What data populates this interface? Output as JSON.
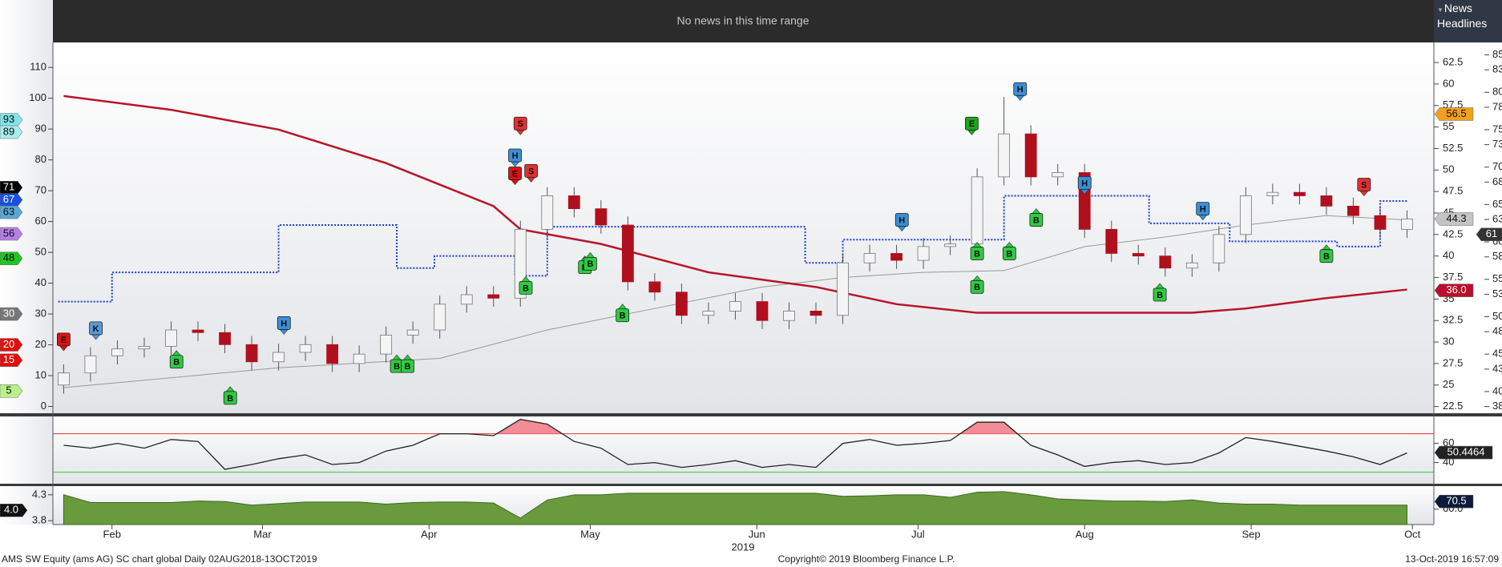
{
  "header": {
    "message": "No news in this time range"
  },
  "news_panel": {
    "title": "News Headlines"
  },
  "footer": {
    "left": "AMS SW Equity (ams AG) SC chart global  Daily 02AUG2018-13OCT2019",
    "center": "Copyright© 2019 Bloomberg Finance L.P.",
    "right": "13-Oct-2019 16:57:09"
  },
  "chart_data": [
    {
      "type": "candlestick",
      "xlim": [
        21,
        278
      ],
      "x": [
        23,
        28,
        33,
        38,
        43,
        48,
        53,
        58,
        63,
        68,
        73,
        78,
        83,
        88,
        93,
        98,
        103,
        108,
        113,
        118,
        123,
        128,
        133,
        138,
        143,
        148,
        153,
        158,
        163,
        168,
        173,
        178,
        183,
        188,
        193,
        198,
        203,
        208,
        213,
        218,
        223,
        228,
        233,
        238,
        243,
        248,
        253,
        258,
        263,
        268,
        273
      ],
      "open": [
        25,
        26.4,
        28.4,
        29.2,
        29.5,
        31.4,
        31.1,
        29.7,
        27.7,
        28.8,
        29.7,
        27.5,
        28.6,
        30.8,
        31.4,
        34.4,
        35.5,
        35.1,
        43.1,
        47,
        45.5,
        43.6,
        37,
        35.8,
        33.1,
        33.6,
        34.7,
        32.5,
        33.6,
        33.1,
        39.2,
        40.3,
        39.5,
        41.1,
        41.4,
        49.2,
        54.2,
        49.2,
        49.7,
        43.1,
        40.3,
        40,
        38.6,
        39.2,
        42.5,
        47,
        47.4,
        47,
        45.8,
        44.7,
        43.1
      ],
      "high": [
        27.4,
        29.4,
        30.2,
        30.5,
        32.4,
        32.4,
        32.1,
        30.7,
        29.8,
        30.7,
        30.7,
        29.6,
        31.8,
        32.4,
        35.4,
        36.5,
        36.5,
        44.1,
        48,
        48,
        46.5,
        44.6,
        38,
        36.8,
        34.6,
        35.7,
        35.7,
        34.6,
        34.6,
        40.2,
        41.3,
        41.3,
        42.1,
        42.4,
        50.2,
        58.5,
        55.2,
        50.7,
        50.7,
        44.1,
        41.3,
        41,
        40.2,
        43.5,
        48,
        48.4,
        48.4,
        48,
        46.8,
        45.7,
        45.3
      ],
      "low": [
        24,
        25.4,
        27.4,
        28.2,
        28.5,
        30.1,
        28.7,
        26.7,
        26.7,
        27.8,
        26.5,
        26.5,
        27.6,
        29.8,
        30.4,
        33.4,
        34.1,
        34.1,
        42.1,
        44.5,
        42.6,
        36,
        34.8,
        32.1,
        32.1,
        32.6,
        31.5,
        31.5,
        32.1,
        32.1,
        38.2,
        38.5,
        38.5,
        40.1,
        40.4,
        48.2,
        48.2,
        48.2,
        42.1,
        39.3,
        39,
        37.6,
        37.6,
        38.2,
        41.5,
        46,
        46,
        44.8,
        43.7,
        42.1,
        42.1
      ],
      "close": [
        26.4,
        28.4,
        29.2,
        29.5,
        31.4,
        31.1,
        29.7,
        27.7,
        28.8,
        29.7,
        27.5,
        28.6,
        30.8,
        31.4,
        34.4,
        35.5,
        35.1,
        43.1,
        47,
        45.5,
        43.6,
        37,
        35.8,
        33.1,
        33.6,
        34.7,
        32.5,
        33.6,
        33.1,
        39.2,
        40.3,
        39.5,
        41.1,
        41.4,
        49.2,
        54.2,
        49.2,
        49.7,
        43.1,
        40.3,
        40,
        38.6,
        39.2,
        42.5,
        47,
        47.4,
        47,
        45.8,
        44.7,
        43.1,
        44.3
      ],
      "up_color": "#f4f4f4",
      "down_color": "#b0101e",
      "candle_axis": "y2",
      "ylim": [
        -2.2,
        118.1
      ],
      "yticks": [
        0,
        10,
        20,
        30,
        40,
        50,
        60,
        70,
        80,
        90,
        100,
        110
      ],
      "y2lim": [
        21.72,
        64.83
      ],
      "y2ticks": [
        22.5,
        25,
        27.5,
        30,
        32.5,
        35,
        37.5,
        40,
        42.5,
        45,
        47.5,
        50,
        52.5,
        55,
        57.5,
        60,
        62.5
      ],
      "y3lim": [
        37.1,
        86.66
      ],
      "y3ticks": [
        38,
        40,
        43,
        45,
        48,
        50,
        53,
        55,
        58,
        60,
        63,
        65,
        68,
        70,
        73,
        75,
        78,
        80,
        83,
        85
      ],
      "overlays": [
        {
          "color": "#999999",
          "width": 1,
          "dash": "none",
          "axis": "y2",
          "x": [
            23,
            63,
            93,
            113,
            133,
            153,
            168,
            183,
            198,
            213,
            228,
            243,
            258,
            273
          ],
          "values": [
            24.7,
            27,
            28.1,
            31.4,
            33.9,
            36.4,
            37.5,
            38.1,
            38.3,
            41.1,
            42.2,
            43.6,
            44.7,
            44.2
          ]
        },
        {
          "color": "#b81428",
          "width": 2.5,
          "dash": "none",
          "axis": "y2",
          "x": [
            23,
            43,
            63,
            83,
            103,
            108,
            123,
            143,
            163,
            178,
            193,
            213,
            233,
            243,
            258,
            273
          ],
          "values": [
            58.6,
            57,
            54.7,
            50.8,
            45.8,
            43.1,
            41.4,
            38.1,
            36.4,
            34.4,
            33.4,
            33.4,
            33.4,
            33.9,
            35.1,
            36.1
          ]
        },
        {
          "color": "#1a3fd8",
          "width": 2,
          "dash": "2 2",
          "axis": "y2",
          "x": [
            22,
            32,
            32,
            63,
            63,
            85,
            85,
            92,
            92,
            107,
            107,
            113,
            113,
            161,
            161,
            168,
            168,
            198,
            198,
            225,
            225,
            240,
            240,
            260,
            260,
            268,
            268,
            273
          ],
          "values": [
            34.7,
            34.7,
            38.1,
            38.1,
            43.6,
            43.6,
            38.6,
            38.6,
            40,
            40,
            37.7,
            37.7,
            43.4,
            43.4,
            39.2,
            39.2,
            41.9,
            41.9,
            47,
            47,
            43.8,
            43.8,
            41.7,
            41.7,
            41.1,
            41.1,
            46.4,
            46.4
          ]
        }
      ],
      "badges": [
        {
          "value": 93,
          "color": "#7fe3e8",
          "axis": "y"
        },
        {
          "value": 89,
          "color": "#a8ecec",
          "axis": "y"
        },
        {
          "value": 71,
          "color": "#000000",
          "axis": "y"
        },
        {
          "value": 67,
          "color": "#1a4fe0",
          "axis": "y"
        },
        {
          "value": 63,
          "color": "#5aa7d6",
          "axis": "y"
        },
        {
          "value": 56,
          "color": "#b57fe6",
          "axis": "y"
        },
        {
          "value": 48,
          "color": "#22c322",
          "axis": "y"
        },
        {
          "value": 30,
          "color": "#777777",
          "axis": "y"
        },
        {
          "value": 20,
          "color": "#e01010",
          "axis": "y"
        },
        {
          "value": 15,
          "color": "#e01010",
          "axis": "y"
        },
        {
          "value": 5,
          "color": "#b8f08a",
          "axis": "y"
        },
        {
          "value": 56.5,
          "color": "#f0a020",
          "axis": "y2"
        },
        {
          "value": 44.3,
          "color": "#c4c4c4",
          "axis": "y2"
        },
        {
          "value": 36,
          "label": "36.0",
          "color": "#b8102a",
          "axis": "y2"
        },
        {
          "value": 61,
          "color": "#333333",
          "axis": "y3"
        }
      ],
      "events": [
        {
          "label": "E",
          "x": 23,
          "y": 30.3,
          "color": "#e01010"
        },
        {
          "label": "K",
          "x": 29,
          "y": 31.6,
          "color": "#5a9ad8"
        },
        {
          "label": "B",
          "x": 44,
          "y": 27.7,
          "color": "#2ecc40"
        },
        {
          "label": "B",
          "x": 54,
          "y": 23.5,
          "color": "#2ecc40"
        },
        {
          "label": "H",
          "x": 64,
          "y": 32.2,
          "color": "#3a8fd8"
        },
        {
          "label": "B",
          "x": 85,
          "y": 27.2,
          "color": "#2ecc40"
        },
        {
          "label": "B",
          "x": 87,
          "y": 27.2,
          "color": "#2ecc40"
        },
        {
          "label": "H",
          "x": 107,
          "y": 51.7,
          "color": "#3a8fd8"
        },
        {
          "label": "E",
          "x": 107,
          "y": 49.6,
          "color": "#e01010"
        },
        {
          "label": "S",
          "x": 108,
          "y": 55.4,
          "color": "#e03030"
        },
        {
          "label": "S",
          "x": 110,
          "y": 49.9,
          "color": "#e03030"
        },
        {
          "label": "B",
          "x": 109,
          "y": 36.3,
          "color": "#2ecc40"
        },
        {
          "label": "B",
          "x": 120,
          "y": 38.7,
          "color": "#2ecc40"
        },
        {
          "label": "B",
          "x": 121,
          "y": 39.1,
          "color": "#2ecc40"
        },
        {
          "label": "B",
          "x": 127,
          "y": 33.1,
          "color": "#2ecc40"
        },
        {
          "label": "H",
          "x": 179,
          "y": 44.2,
          "color": "#3a8fd8"
        },
        {
          "label": "B",
          "x": 193,
          "y": 40.3,
          "color": "#2ecc40"
        },
        {
          "label": "B",
          "x": 193,
          "y": 36.4,
          "color": "#2ecc40"
        },
        {
          "label": "E",
          "x": 192,
          "y": 55.4,
          "color": "#18a818"
        },
        {
          "label": "B",
          "x": 199,
          "y": 40.3,
          "color": "#2ecc40"
        },
        {
          "label": "H",
          "x": 201,
          "y": 59.4,
          "color": "#3a8fd8"
        },
        {
          "label": "B",
          "x": 204,
          "y": 44.2,
          "color": "#2ecc40"
        },
        {
          "label": "H",
          "x": 213,
          "y": 48.5,
          "color": "#3a8fd8"
        },
        {
          "label": "B",
          "x": 227,
          "y": 35.5,
          "color": "#2ecc40"
        },
        {
          "label": "H",
          "x": 235,
          "y": 45.5,
          "color": "#3a8fd8"
        },
        {
          "label": "B",
          "x": 258,
          "y": 40,
          "color": "#2ecc40"
        },
        {
          "label": "S",
          "x": 265,
          "y": 48.3,
          "color": "#e03030"
        }
      ]
    },
    {
      "type": "line",
      "xlim": [
        21,
        278
      ],
      "x": [
        23,
        28,
        33,
        38,
        43,
        48,
        53,
        58,
        63,
        68,
        73,
        78,
        83,
        88,
        93,
        98,
        103,
        108,
        113,
        118,
        123,
        128,
        133,
        138,
        143,
        148,
        153,
        158,
        163,
        168,
        173,
        178,
        183,
        188,
        193,
        198,
        203,
        208,
        213,
        218,
        223,
        228,
        233,
        238,
        243,
        248,
        253,
        258,
        263,
        268,
        273
      ],
      "values": [
        58,
        55,
        60,
        55,
        64,
        62,
        33,
        38,
        44,
        48,
        38,
        40,
        52,
        58,
        70,
        70,
        68,
        85,
        80,
        62,
        55,
        38,
        40,
        35,
        38,
        42,
        35,
        38,
        35,
        60,
        64,
        58,
        60,
        63,
        82,
        82,
        58,
        48,
        36,
        40,
        42,
        38,
        40,
        50,
        66,
        62,
        57,
        52,
        46,
        38,
        50
      ],
      "color": "#222222",
      "ylim": [
        18,
        88
      ],
      "y2ticks": [
        40,
        60
      ],
      "hlines": [
        {
          "value": 70,
          "color": "#e03030",
          "fill": "#f28c96"
        },
        {
          "value": 30,
          "color": "#2ecc40"
        }
      ],
      "badges": [
        {
          "value": 50.4464,
          "color": "#222222",
          "axis": "y2"
        }
      ]
    },
    {
      "type": "area",
      "xlim": [
        21,
        278
      ],
      "x": [
        23,
        28,
        33,
        38,
        43,
        48,
        53,
        58,
        63,
        68,
        73,
        78,
        83,
        88,
        93,
        98,
        103,
        108,
        113,
        118,
        123,
        128,
        133,
        138,
        143,
        148,
        153,
        158,
        163,
        168,
        173,
        178,
        183,
        188,
        193,
        198,
        203,
        208,
        213,
        218,
        223,
        228,
        233,
        238,
        243,
        248,
        253,
        258,
        263,
        268,
        273
      ],
      "values": [
        4.3,
        4.15,
        4.15,
        4.15,
        4.15,
        4.18,
        4.17,
        4.1,
        4.13,
        4.16,
        4.16,
        4.16,
        4.12,
        4.15,
        4.16,
        4.16,
        4.14,
        3.85,
        4.2,
        4.3,
        4.3,
        4.33,
        4.33,
        4.33,
        4.33,
        4.33,
        4.33,
        4.33,
        4.33,
        4.27,
        4.28,
        4.3,
        4.3,
        4.25,
        4.35,
        4.36,
        4.3,
        4.22,
        4.2,
        4.18,
        4.18,
        4.17,
        4.2,
        4.14,
        4.12,
        4.12,
        4.1,
        4.1,
        4.1,
        4.1,
        4.1
      ],
      "color": "#6a9a3e",
      "ylim": [
        3.726,
        4.467
      ],
      "yticks": [
        4.3,
        3.8
      ],
      "y2lim": [
        39,
        91.5
      ],
      "y2ticks": [
        {
          "value": 60,
          "label": "60.0"
        }
      ],
      "badges": [
        {
          "value": 4,
          "label": "4.0",
          "color": "#111111",
          "axis": "y"
        },
        {
          "value": 70.5,
          "color": "#0d1b3a",
          "axis": "y2"
        }
      ],
      "xticks": [
        {
          "value": 32,
          "label": "Feb"
        },
        {
          "value": 60,
          "label": "Mar"
        },
        {
          "value": 91,
          "label": "Apr"
        },
        {
          "value": 121,
          "label": "May"
        },
        {
          "value": 152,
          "label": "Jun"
        },
        {
          "value": 182,
          "label": "Jul"
        },
        {
          "value": 213,
          "label": "Aug"
        },
        {
          "value": 244,
          "label": "Sep"
        },
        {
          "value": 274,
          "label": "Oct"
        }
      ],
      "xlabel": "2019"
    }
  ]
}
